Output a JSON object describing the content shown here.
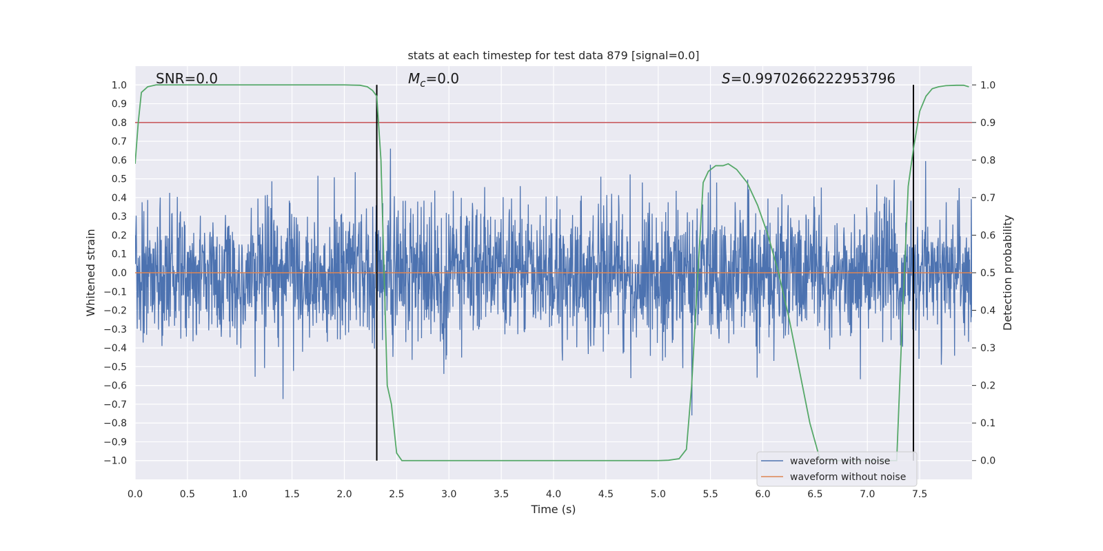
{
  "chart_data": {
    "type": "line",
    "title": "stats at each timestep for test data 879 [signal=0.0]",
    "xlabel": "Time (s)",
    "ylabel": "Whitened strain",
    "y2label": "Detection probability",
    "xlim": [
      0.0,
      8.0
    ],
    "ylim": [
      -1.1,
      1.1
    ],
    "y2lim": [
      -0.05,
      1.05
    ],
    "x_ticks": [
      0.0,
      0.5,
      1.0,
      1.5,
      2.0,
      2.5,
      3.0,
      3.5,
      4.0,
      4.5,
      5.0,
      5.5,
      6.0,
      6.5,
      7.0,
      7.5
    ],
    "x_tick_labels": [
      "0.0",
      "0.5",
      "1.0",
      "1.5",
      "2.0",
      "2.5",
      "3.0",
      "3.5",
      "4.0",
      "4.5",
      "5.0",
      "5.5",
      "6.0",
      "6.5",
      "7.0",
      "7.5"
    ],
    "y_ticks": [
      1.0,
      0.9,
      0.8,
      0.7,
      0.6,
      0.5,
      0.4,
      0.3,
      0.2,
      0.1,
      0.0,
      -0.1,
      -0.2,
      -0.3,
      -0.4,
      -0.5,
      -0.6,
      -0.7,
      -0.8,
      -0.9,
      -1.0
    ],
    "y_tick_labels": [
      "1.0",
      "0.9",
      "0.8",
      "0.7",
      "0.6",
      "0.5",
      "0.4",
      "0.3",
      "0.2",
      "0.1",
      "0.0",
      "−0.1",
      "−0.2",
      "−0.3",
      "−0.4",
      "−0.5",
      "−0.6",
      "−0.7",
      "−0.8",
      "−0.9",
      "−1.0"
    ],
    "y2_ticks": [
      1.0,
      0.9,
      0.8,
      0.7,
      0.6,
      0.5,
      0.4,
      0.3,
      0.2,
      0.1,
      0.0
    ],
    "y2_tick_labels": [
      "1.0",
      "0.9",
      "0.8",
      "0.7",
      "0.6",
      "0.5",
      "0.4",
      "0.3",
      "0.2",
      "0.1",
      "0.0"
    ],
    "annotations": {
      "snr": "SNR=0.0",
      "mc_symbol": "M",
      "mc_sub": "c",
      "mc_value": "=0.0",
      "s_symbol": "S",
      "s_value": "=0.9970266222953796"
    },
    "threshold": {
      "axis": "y2",
      "value": 0.9,
      "color": "#c44e52"
    },
    "vertical_lines": [
      2.31,
      7.44
    ],
    "noise": {
      "seed": 879,
      "std": 0.19,
      "samples": 2400,
      "color": "#4c72b0"
    },
    "series": [
      {
        "name": "waveform with noise",
        "color": "#4c72b0",
        "axis": "y",
        "kind": "noise"
      },
      {
        "name": "waveform without noise",
        "color": "#dd8452",
        "axis": "y",
        "kind": "line",
        "value": 0.0
      },
      {
        "name": "detection probability",
        "color": "#55a868",
        "axis": "y2",
        "kind": "line",
        "x": [
          0.0,
          0.03,
          0.06,
          0.12,
          0.2,
          0.5,
          1.0,
          1.5,
          2.0,
          2.15,
          2.22,
          2.27,
          2.31,
          2.35,
          2.38,
          2.41,
          2.45,
          2.5,
          2.55,
          2.6,
          3.0,
          3.5,
          4.0,
          4.5,
          5.0,
          5.1,
          5.2,
          5.27,
          5.32,
          5.38,
          5.43,
          5.48,
          5.55,
          5.62,
          5.67,
          5.75,
          5.85,
          5.95,
          6.05,
          6.15,
          6.25,
          6.35,
          6.45,
          6.55,
          6.65,
          6.75,
          6.85,
          6.95,
          7.05,
          7.15,
          7.22,
          7.28,
          7.33,
          7.39,
          7.44,
          7.5,
          7.56,
          7.62,
          7.68,
          7.75,
          7.85,
          7.92,
          7.97
        ],
        "y": [
          0.79,
          0.9,
          0.98,
          0.995,
          1.0,
          1.0,
          1.0,
          1.0,
          1.0,
          0.999,
          0.995,
          0.985,
          0.97,
          0.8,
          0.5,
          0.2,
          0.15,
          0.02,
          0.0,
          0.0,
          0.0,
          0.0,
          0.0,
          0.0,
          0.0,
          0.001,
          0.005,
          0.03,
          0.2,
          0.5,
          0.74,
          0.77,
          0.785,
          0.785,
          0.79,
          0.775,
          0.74,
          0.68,
          0.6,
          0.5,
          0.38,
          0.24,
          0.1,
          0.0,
          0.0,
          0.0,
          0.0,
          0.0,
          0.0,
          0.0,
          0.0,
          0.0,
          0.35,
          0.73,
          0.83,
          0.93,
          0.97,
          0.99,
          0.995,
          0.998,
          0.999,
          0.999,
          0.995
        ]
      }
    ],
    "legend": {
      "location": "bottom-right",
      "entries": [
        "waveform with noise",
        "waveform without noise"
      ]
    }
  }
}
